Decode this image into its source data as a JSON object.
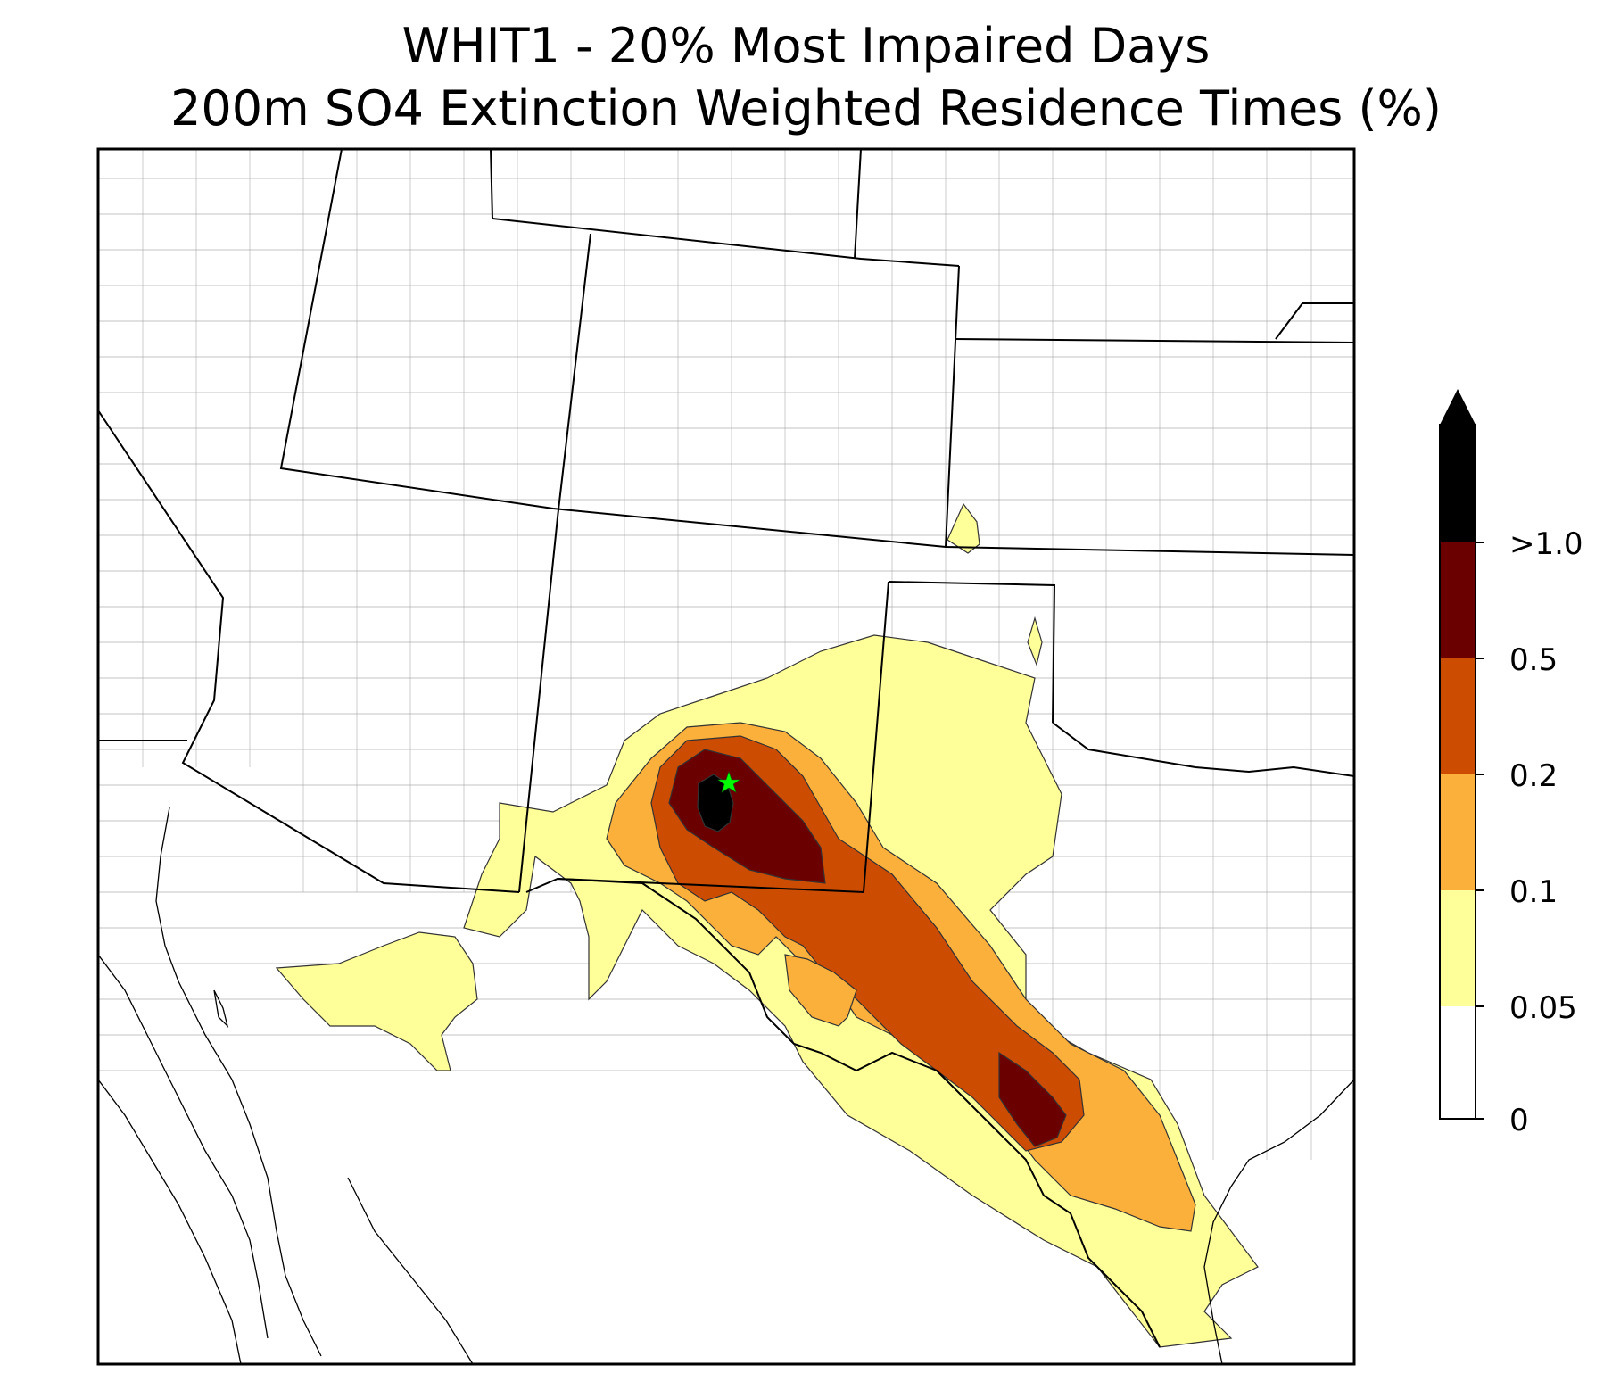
{
  "title_line1": "WHIT1 - 20% Most Impaired Days",
  "title_line2": "200m SO4 Extinction Weighted Residence Times (%)",
  "colorbar": {
    "levels": [
      {
        "label": "0",
        "color": "#ffffff"
      },
      {
        "label": "0.05",
        "color": "#ffff99"
      },
      {
        "label": "0.1",
        "color": "#fcb03c"
      },
      {
        "label": "0.2",
        "color": "#cc4c02"
      },
      {
        "label": "0.5",
        "color": "#6b0000"
      },
      {
        "label": ">1.0",
        "color": "#000000"
      }
    ],
    "extend_color": "#000000"
  },
  "site_marker": {
    "symbol": "star",
    "color": "#00ff00"
  },
  "boundary_colors": {
    "state": "#000000",
    "county": "#a0a0a0",
    "coast": "#000000"
  }
}
